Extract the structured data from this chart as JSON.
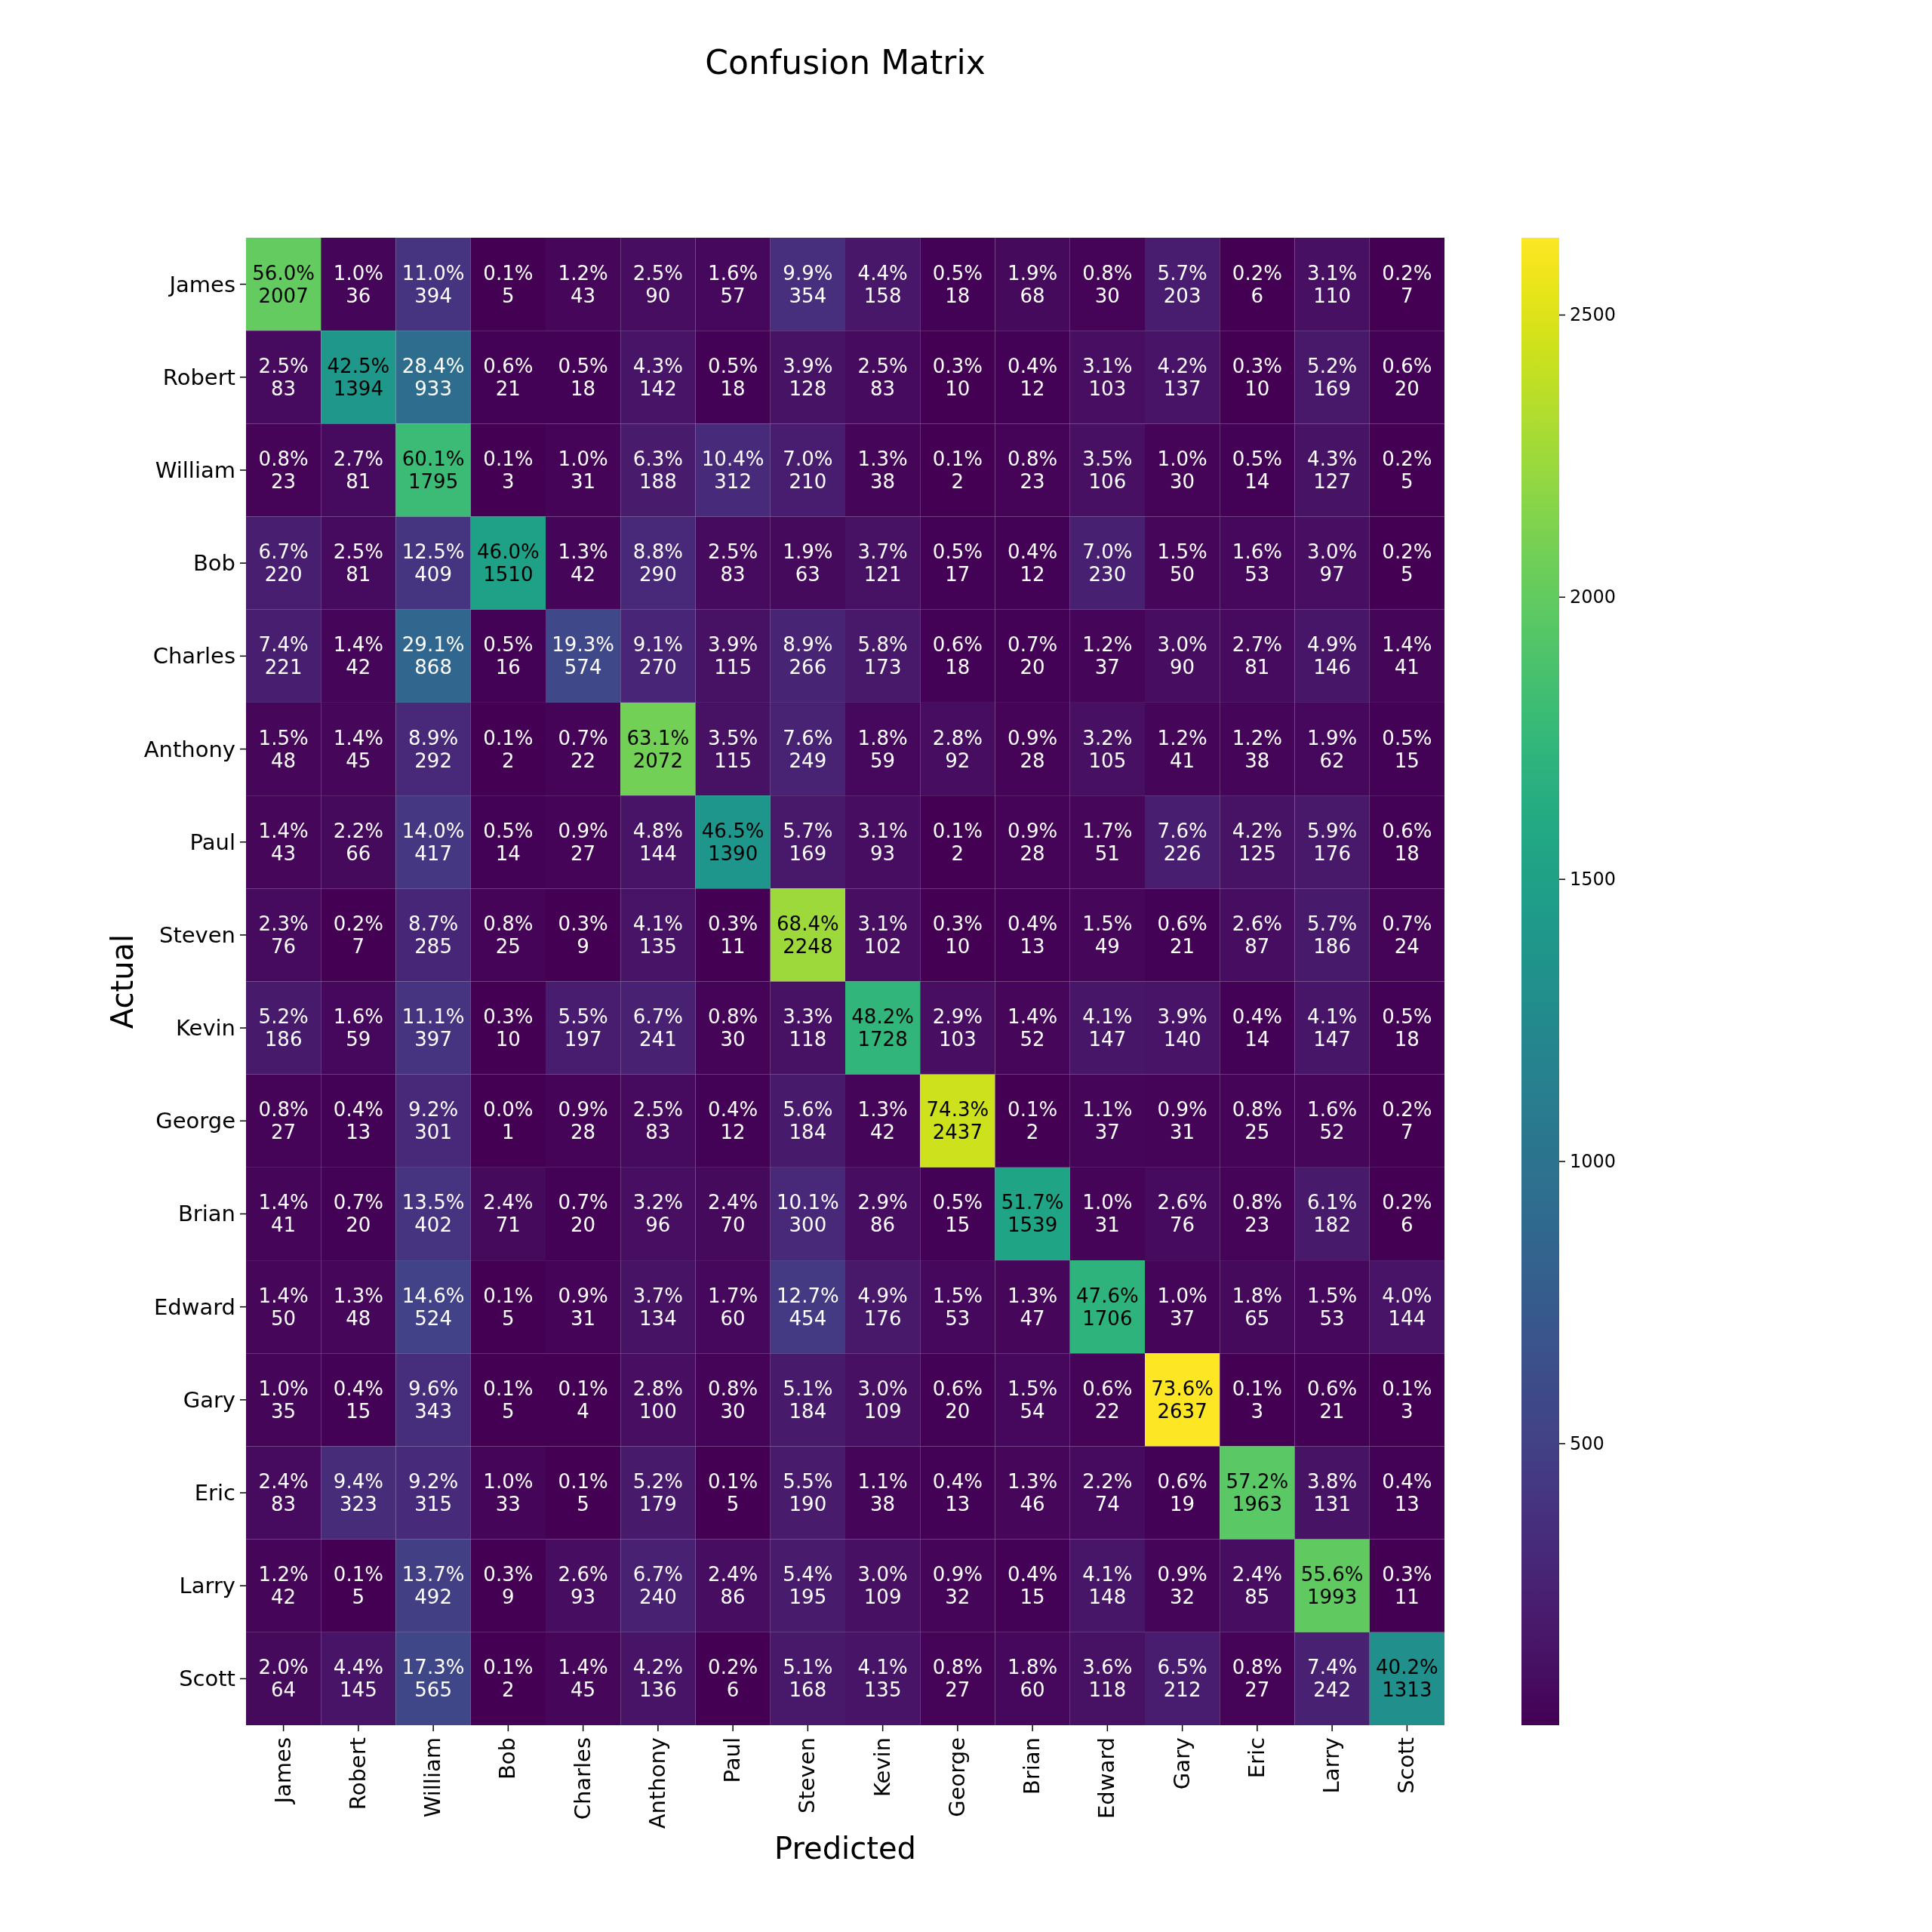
{
  "chart_data": {
    "type": "heatmap",
    "title": "Confusion Matrix",
    "xlabel": "Predicted",
    "ylabel": "Actual",
    "categories": [
      "James",
      "Robert",
      "William",
      "Bob",
      "Charles",
      "Anthony",
      "Paul",
      "Steven",
      "Kevin",
      "George",
      "Brian",
      "Edward",
      "Gary",
      "Eric",
      "Larry",
      "Scott"
    ],
    "y_categories": [
      "James",
      "Robert",
      "William",
      "Bob",
      "Charles",
      "Anthony",
      "Paul",
      "Steven",
      "Kevin",
      "George",
      "Brian",
      "Edward",
      "Gary",
      "Eric",
      "Larry",
      "Scott"
    ],
    "cells": [
      [
        2007,
        36,
        394,
        5,
        43,
        90,
        57,
        354,
        158,
        18,
        68,
        30,
        203,
        6,
        110,
        7
      ],
      [
        83,
        1394,
        933,
        21,
        18,
        142,
        18,
        128,
        83,
        10,
        12,
        103,
        137,
        10,
        169,
        20
      ],
      [
        23,
        81,
        1795,
        3,
        31,
        188,
        312,
        210,
        38,
        2,
        23,
        106,
        30,
        14,
        127,
        5
      ],
      [
        220,
        81,
        409,
        1510,
        42,
        290,
        83,
        63,
        121,
        17,
        12,
        230,
        50,
        53,
        97,
        5
      ],
      [
        221,
        42,
        868,
        16,
        574,
        270,
        115,
        266,
        173,
        18,
        20,
        37,
        90,
        81,
        146,
        41
      ],
      [
        48,
        45,
        292,
        2,
        22,
        2072,
        115,
        249,
        59,
        92,
        28,
        105,
        41,
        38,
        62,
        15
      ],
      [
        43,
        66,
        417,
        14,
        27,
        144,
        1390,
        169,
        93,
        2,
        28,
        51,
        226,
        125,
        176,
        18
      ],
      [
        76,
        7,
        285,
        25,
        9,
        135,
        11,
        2248,
        102,
        10,
        13,
        49,
        21,
        87,
        186,
        24
      ],
      [
        186,
        59,
        397,
        10,
        197,
        241,
        30,
        118,
        1728,
        103,
        52,
        147,
        140,
        14,
        147,
        18
      ],
      [
        27,
        13,
        301,
        1,
        28,
        83,
        12,
        184,
        42,
        2437,
        2,
        37,
        31,
        25,
        52,
        7
      ],
      [
        41,
        20,
        402,
        71,
        20,
        96,
        70,
        300,
        86,
        15,
        1539,
        31,
        76,
        23,
        182,
        6
      ],
      [
        50,
        48,
        524,
        5,
        31,
        134,
        60,
        454,
        176,
        53,
        47,
        1706,
        37,
        65,
        53,
        144
      ],
      [
        35,
        15,
        343,
        5,
        4,
        100,
        30,
        184,
        109,
        20,
        54,
        22,
        2637,
        3,
        21,
        3
      ],
      [
        83,
        323,
        315,
        33,
        5,
        179,
        5,
        190,
        38,
        13,
        46,
        74,
        19,
        1963,
        131,
        13
      ],
      [
        42,
        5,
        492,
        9,
        93,
        240,
        86,
        195,
        109,
        32,
        15,
        148,
        32,
        85,
        1993,
        11
      ],
      [
        64,
        145,
        565,
        2,
        45,
        136,
        6,
        168,
        135,
        27,
        60,
        118,
        212,
        27,
        242,
        1313
      ]
    ],
    "cell_labels": [
      [
        "56.0%\n2007",
        "1.0%\n36",
        "11.0%\n394",
        "0.1%\n5",
        "1.2%\n43",
        "2.5%\n90",
        "1.6%\n57",
        "9.9%\n354",
        "4.4%\n158",
        "0.5%\n18",
        "1.9%\n68",
        "0.8%\n30",
        "5.7%\n203",
        "0.2%\n6",
        "3.1%\n110",
        "0.2%\n7"
      ],
      [
        "2.5%\n83",
        "42.5%\n1394",
        "28.4%\n933",
        "0.6%\n21",
        "0.5%\n18",
        "4.3%\n142",
        "0.5%\n18",
        "3.9%\n128",
        "2.5%\n83",
        "0.3%\n10",
        "0.4%\n12",
        "3.1%\n103",
        "4.2%\n137",
        "0.3%\n10",
        "5.2%\n169",
        "0.6%\n20"
      ],
      [
        "0.8%\n23",
        "2.7%\n81",
        "60.1%\n1795",
        "0.1%\n3",
        "1.0%\n31",
        "6.3%\n188",
        "10.4%\n312",
        "7.0%\n210",
        "1.3%\n38",
        "0.1%\n2",
        "0.8%\n23",
        "3.5%\n106",
        "1.0%\n30",
        "0.5%\n14",
        "4.3%\n127",
        "0.2%\n5"
      ],
      [
        "6.7%\n220",
        "2.5%\n81",
        "12.5%\n409",
        "46.0%\n1510",
        "1.3%\n42",
        "8.8%\n290",
        "2.5%\n83",
        "1.9%\n63",
        "3.7%\n121",
        "0.5%\n17",
        "0.4%\n12",
        "7.0%\n230",
        "1.5%\n50",
        "1.6%\n53",
        "3.0%\n97",
        "0.2%\n5"
      ],
      [
        "7.4%\n221",
        "1.4%\n42",
        "29.1%\n868",
        "0.5%\n16",
        "19.3%\n574",
        "9.1%\n270",
        "3.9%\n115",
        "8.9%\n266",
        "5.8%\n173",
        "0.6%\n18",
        "0.7%\n20",
        "1.2%\n37",
        "3.0%\n90",
        "2.7%\n81",
        "4.9%\n146",
        "1.4%\n41"
      ],
      [
        "1.5%\n48",
        "1.4%\n45",
        "8.9%\n292",
        "0.1%\n2",
        "0.7%\n22",
        "63.1%\n2072",
        "3.5%\n115",
        "7.6%\n249",
        "1.8%\n59",
        "2.8%\n92",
        "0.9%\n28",
        "3.2%\n105",
        "1.2%\n41",
        "1.2%\n38",
        "1.9%\n62",
        "0.5%\n15"
      ],
      [
        "1.4%\n43",
        "2.2%\n66",
        "14.0%\n417",
        "0.5%\n14",
        "0.9%\n27",
        "4.8%\n144",
        "46.5%\n1390",
        "5.7%\n169",
        "3.1%\n93",
        "0.1%\n2",
        "0.9%\n28",
        "1.7%\n51",
        "7.6%\n226",
        "4.2%\n125",
        "5.9%\n176",
        "0.6%\n18"
      ],
      [
        "2.3%\n76",
        "0.2%\n7",
        "8.7%\n285",
        "0.8%\n25",
        "0.3%\n9",
        "4.1%\n135",
        "0.3%\n11",
        "68.4%\n2248",
        "3.1%\n102",
        "0.3%\n10",
        "0.4%\n13",
        "1.5%\n49",
        "0.6%\n21",
        "2.6%\n87",
        "5.7%\n186",
        "0.7%\n24"
      ],
      [
        "5.2%\n186",
        "1.6%\n59",
        "11.1%\n397",
        "0.3%\n10",
        "5.5%\n197",
        "6.7%\n241",
        "0.8%\n30",
        "3.3%\n118",
        "48.2%\n1728",
        "2.9%\n103",
        "1.4%\n52",
        "4.1%\n147",
        "3.9%\n140",
        "0.4%\n14",
        "4.1%\n147",
        "0.5%\n18"
      ],
      [
        "0.8%\n27",
        "0.4%\n13",
        "9.2%\n301",
        "0.0%\n1",
        "0.9%\n28",
        "2.5%\n83",
        "0.4%\n12",
        "5.6%\n184",
        "1.3%\n42",
        "74.3%\n2437",
        "0.1%\n2",
        "1.1%\n37",
        "0.9%\n31",
        "0.8%\n25",
        "1.6%\n52",
        "0.2%\n7"
      ],
      [
        "1.4%\n41",
        "0.7%\n20",
        "13.5%\n402",
        "2.4%\n71",
        "0.7%\n20",
        "3.2%\n96",
        "2.4%\n70",
        "10.1%\n300",
        "2.9%\n86",
        "0.5%\n15",
        "51.7%\n1539",
        "1.0%\n31",
        "2.6%\n76",
        "0.8%\n23",
        "6.1%\n182",
        "0.2%\n6"
      ],
      [
        "1.4%\n50",
        "1.3%\n48",
        "14.6%\n524",
        "0.1%\n5",
        "0.9%\n31",
        "3.7%\n134",
        "1.7%\n60",
        "12.7%\n454",
        "4.9%\n176",
        "1.5%\n53",
        "1.3%\n47",
        "47.6%\n1706",
        "1.0%\n37",
        "1.8%\n65",
        "1.5%\n53",
        "4.0%\n144"
      ],
      [
        "1.0%\n35",
        "0.4%\n15",
        "9.6%\n343",
        "0.1%\n5",
        "0.1%\n4",
        "2.8%\n100",
        "0.8%\n30",
        "5.1%\n184",
        "3.0%\n109",
        "0.6%\n20",
        "1.5%\n54",
        "0.6%\n22",
        "73.6%\n2637",
        "0.1%\n3",
        "0.6%\n21",
        "0.1%\n3"
      ],
      [
        "2.4%\n83",
        "9.4%\n323",
        "9.2%\n315",
        "1.0%\n33",
        "0.1%\n5",
        "5.2%\n179",
        "0.1%\n5",
        "5.5%\n190",
        "1.1%\n38",
        "0.4%\n13",
        "1.3%\n46",
        "2.2%\n74",
        "0.6%\n19",
        "57.2%\n1963",
        "3.8%\n131",
        "0.4%\n13"
      ],
      [
        "1.2%\n42",
        "0.1%\n5",
        "13.7%\n492",
        "0.3%\n9",
        "2.6%\n93",
        "6.7%\n240",
        "2.4%\n86",
        "5.4%\n195",
        "3.0%\n109",
        "0.9%\n32",
        "0.4%\n15",
        "4.1%\n148",
        "0.9%\n32",
        "2.4%\n85",
        "55.6%\n1993",
        "0.3%\n11"
      ],
      [
        "2.0%\n64",
        "4.4%\n145",
        "17.3%\n565",
        "0.1%\n2",
        "1.4%\n45",
        "4.2%\n136",
        "0.2%\n6",
        "5.1%\n168",
        "4.1%\n135",
        "0.8%\n27",
        "1.8%\n60",
        "3.6%\n118",
        "6.5%\n212",
        "0.8%\n27",
        "7.4%\n242",
        "40.2%\n1313"
      ]
    ],
    "clim": [
      1,
      2637
    ],
    "cticks": [
      500,
      1000,
      1500,
      2000,
      2500
    ]
  }
}
